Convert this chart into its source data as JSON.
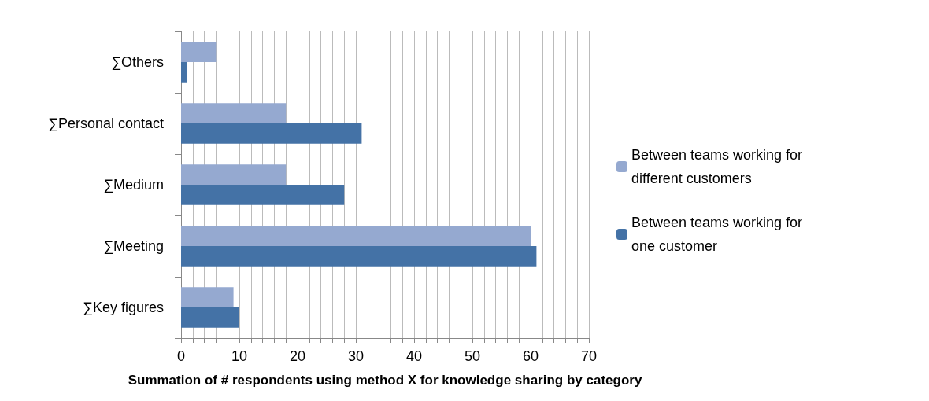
{
  "chart_data": {
    "type": "bar",
    "orientation": "horizontal",
    "xlabel": "Summation of # respondents using method X for knowledge sharing by category",
    "categories": [
      "∑Others",
      "∑Personal contact",
      "∑Medium",
      "∑Meeting",
      "∑Key figures"
    ],
    "series": [
      {
        "name": "Between teams working for different customers",
        "color": "#95a9d0",
        "values": [
          6,
          18,
          18,
          60,
          9
        ]
      },
      {
        "name": "Between teams working for one customer",
        "color": "#4472a6",
        "values": [
          1,
          31,
          28,
          61,
          10
        ]
      }
    ],
    "xlim": [
      0,
      70
    ],
    "xticks": [
      0,
      {
        "value": 2,
        "label": null
      },
      {
        "value": 4,
        "label": null
      },
      {
        "value": 6,
        "label": null
      },
      {
        "value": 8,
        "label": null
      },
      10,
      {
        "value": 12,
        "label": null
      },
      {
        "value": 14,
        "label": null
      },
      {
        "value": 16,
        "label": null
      },
      {
        "value": 18,
        "label": null
      },
      20,
      {
        "value": 22,
        "label": null
      },
      {
        "value": 24,
        "label": null
      },
      {
        "value": 26,
        "label": null
      },
      {
        "value": 28,
        "label": null
      },
      30,
      {
        "value": 32,
        "label": null
      },
      {
        "value": 34,
        "label": null
      },
      {
        "value": 36,
        "label": null
      },
      {
        "value": 38,
        "label": null
      },
      40,
      {
        "value": 42,
        "label": null
      },
      {
        "value": 44,
        "label": null
      },
      {
        "value": 46,
        "label": null
      },
      {
        "value": 48,
        "label": null
      },
      50,
      {
        "value": 52,
        "label": null
      },
      {
        "value": 54,
        "label": null
      },
      {
        "value": 56,
        "label": null
      },
      {
        "value": 58,
        "label": null
      },
      60,
      {
        "value": 62,
        "label": null
      },
      {
        "value": 64,
        "label": null
      },
      {
        "value": 66,
        "label": null
      },
      {
        "value": 68,
        "label": null
      },
      70
    ],
    "grid": "x",
    "legend": "right"
  }
}
